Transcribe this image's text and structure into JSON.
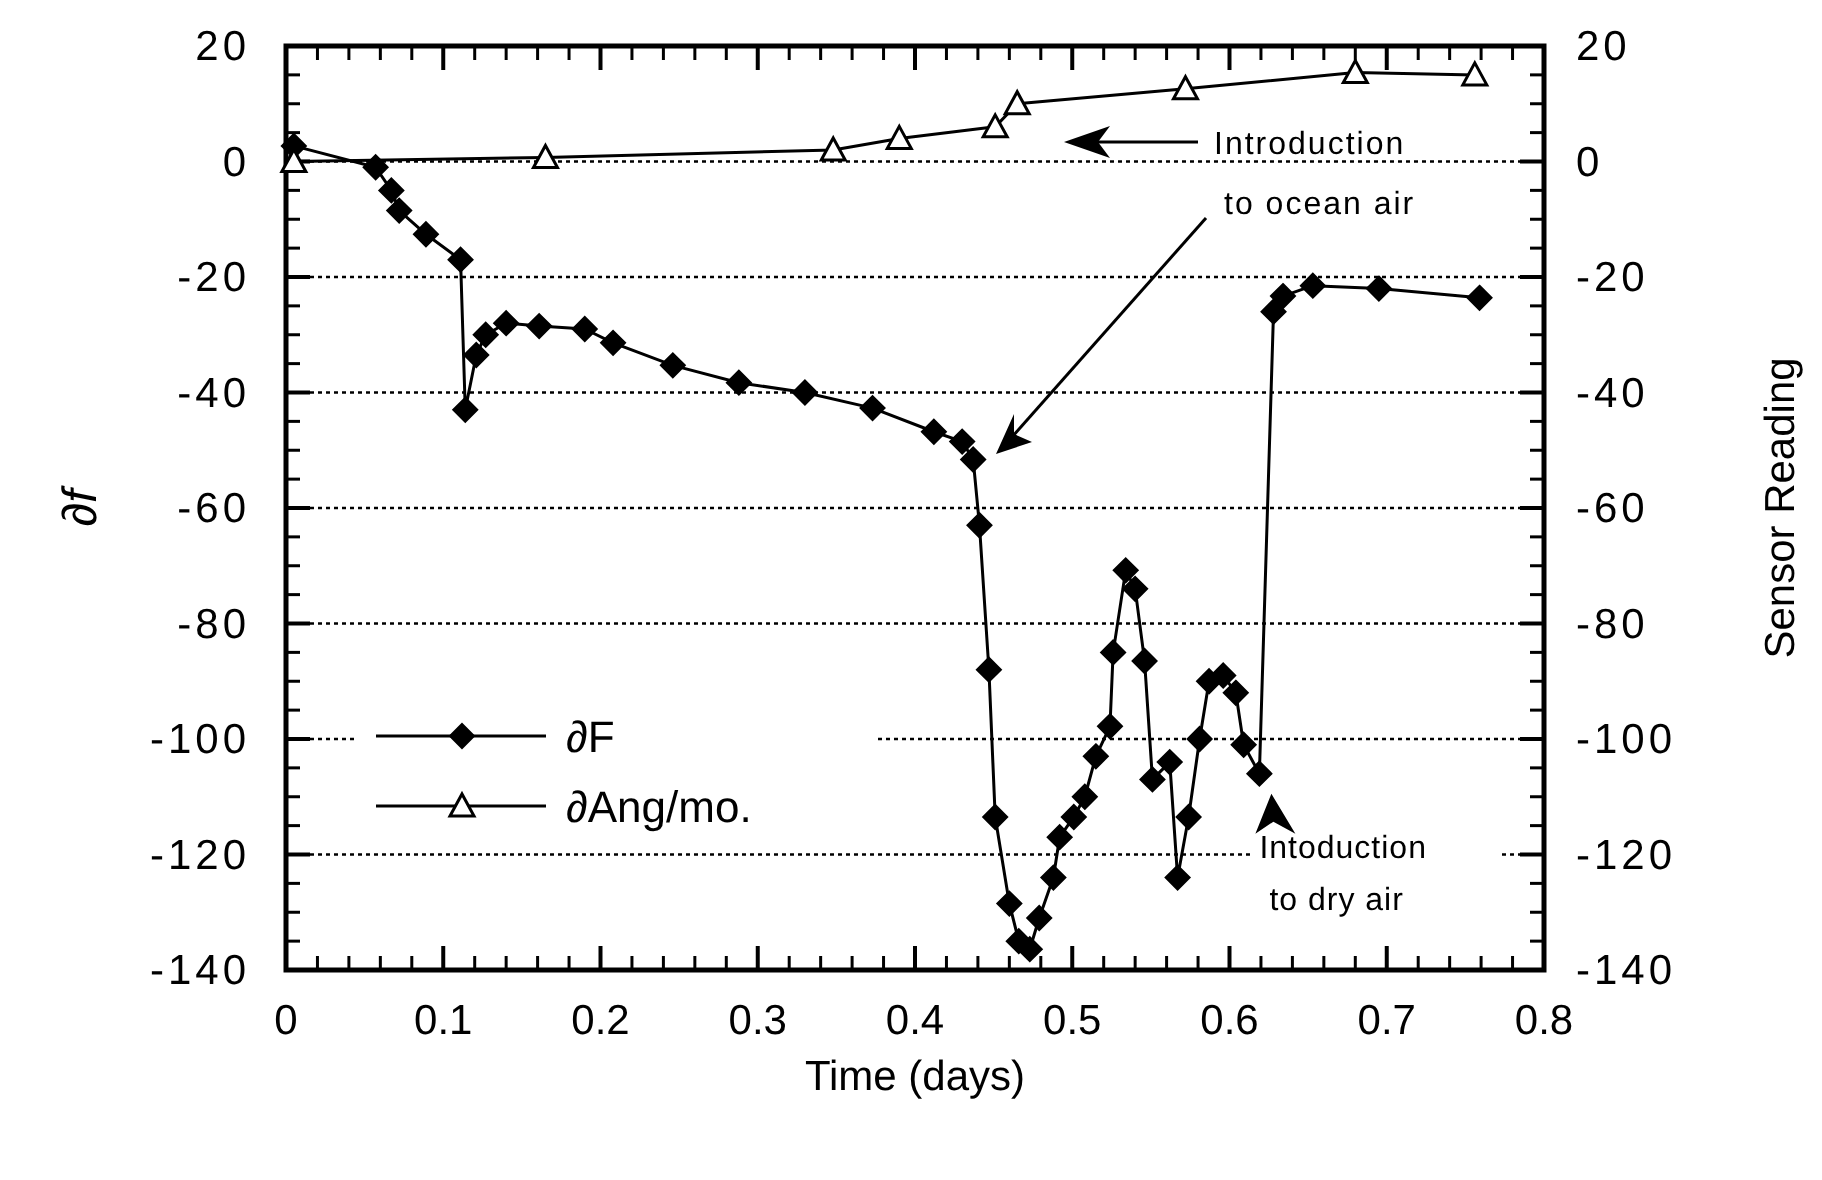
{
  "chart_data": {
    "type": "line",
    "xlabel": "Time (days)",
    "ylabel": "∂f",
    "y2label": "Sensor Reading",
    "xlim": [
      0,
      0.8
    ],
    "xticks": [
      0,
      0.1,
      0.2,
      0.3,
      0.4,
      0.5,
      0.6,
      0.7,
      0.8
    ],
    "ylim": [
      -140,
      20
    ],
    "yticks": [
      -140,
      -120,
      -100,
      -80,
      -60,
      -40,
      -20,
      0,
      20
    ],
    "y2lim": [
      -140,
      20
    ],
    "y2ticks": [
      -140,
      -120,
      -100,
      -80,
      -60,
      -40,
      -20,
      0,
      20
    ],
    "grid": "y",
    "legend": "bottom left",
    "line_style": "solid",
    "series": [
      {
        "name": "∂F",
        "color": "#000000",
        "marker": "diamond",
        "x": [
          0.005,
          0.057,
          0.067,
          0.072,
          0.089,
          0.111,
          0.114,
          0.121,
          0.127,
          0.14,
          0.161,
          0.19,
          0.208,
          0.246,
          0.288,
          0.33,
          0.373,
          0.412,
          0.43,
          0.437,
          0.441,
          0.447,
          0.451,
          0.46,
          0.466,
          0.473,
          0.479,
          0.488,
          0.492,
          0.501,
          0.508,
          0.515,
          0.524,
          0.526,
          0.534,
          0.54,
          0.546,
          0.551,
          0.562,
          0.567,
          0.574,
          0.581,
          0.587,
          0.596,
          0.604,
          0.609,
          0.619,
          0.628,
          0.634,
          0.653,
          0.695,
          0.759
        ],
        "values": [
          2.7,
          -1,
          -5,
          -8.5,
          -12.6,
          -17,
          -43,
          -33.5,
          -30,
          -28,
          -28.5,
          -29,
          -31.4,
          -35.3,
          -38.3,
          -40,
          -42.7,
          -46.8,
          -48.5,
          -51.6,
          -63,
          -88,
          -113.5,
          -128.5,
          -135,
          -136.4,
          -131,
          -124,
          -117,
          -113.5,
          -110,
          -103,
          -97.8,
          -85,
          -70.8,
          -74,
          -86.5,
          -107,
          -104,
          -124,
          -113.5,
          -100,
          -90,
          -89,
          -92,
          -101,
          -106,
          -26,
          -23.3,
          -21.5,
          -22,
          -23.6
        ]
      },
      {
        "name": "∂Ang/mo.",
        "color": "#000000",
        "marker": "triangle",
        "x": [
          0.005,
          0.165,
          0.348,
          0.39,
          0.451,
          0.465,
          0.572,
          0.68,
          0.756
        ],
        "values": [
          0,
          0.7,
          2,
          4,
          6,
          10,
          12.6,
          15.4,
          15
        ]
      }
    ],
    "annotations": [
      "Introduction to ocean air",
      {
        "text": "Intoduction to dry air",
        "x": 0.619,
        "y": -106
      }
    ]
  }
}
